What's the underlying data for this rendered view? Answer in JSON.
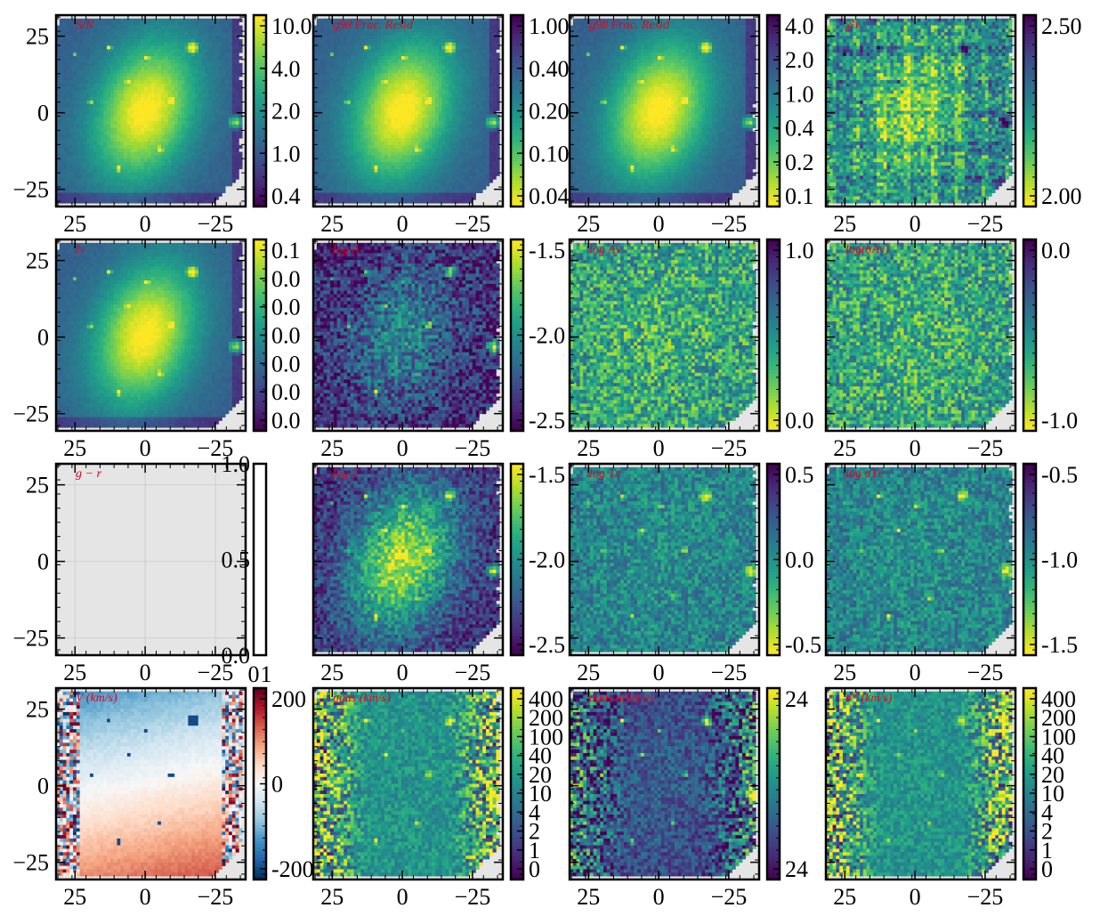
{
  "chart_data": {
    "type": "heatmap",
    "shared_x_ticks": [
      "25",
      "0",
      "−25"
    ],
    "shared_y_ticks": [
      "25",
      "0",
      "−25"
    ],
    "panels": [
      {
        "title": "S/N",
        "colormap": "viridis",
        "pattern": "galaxy",
        "colorbar_ticks": [
          "10.0",
          "4.0",
          "2.0",
          "1.0",
          "0.4"
        ],
        "colorbar_reversed": false
      },
      {
        "title": "g98 Frac. Resid",
        "colormap": "viridis",
        "pattern": "galaxy",
        "colorbar_ticks": [
          "1.00",
          "0.40",
          "0.20",
          "0.10",
          "0.04"
        ],
        "colorbar_reversed": true
      },
      {
        "title": "g98 Frac. Resid",
        "colormap": "viridis",
        "pattern": "galaxy",
        "colorbar_ticks": [
          "4.0",
          "2.0",
          "1.0",
          "0.4",
          "0.2",
          "0.1"
        ],
        "colorbar_reversed": true
      },
      {
        "title": "χ²ν",
        "colormap": "viridis",
        "pattern": "chi",
        "colorbar_ticks": [
          "2.50",
          "2.00"
        ],
        "colorbar_reversed": true
      },
      {
        "title": "Iν",
        "colormap": "viridis",
        "pattern": "galaxy",
        "colorbar_ticks": [
          "0.1",
          "0.0",
          "0.0",
          "0.0",
          "0.0",
          "0.0",
          "0.0"
        ],
        "colorbar_reversed": false
      },
      {
        "title": "log A",
        "colormap": "viridis",
        "pattern": "noisy-galaxy",
        "colorbar_ticks": [
          "-1.5",
          "-2.0",
          "-2.5"
        ],
        "colorbar_reversed": false
      },
      {
        "title": "log Aν",
        "colormap": "viridis",
        "pattern": "noise",
        "colorbar_ticks": [
          "1.0",
          "0.0"
        ],
        "colorbar_reversed": true
      },
      {
        "title": "log(σAν)",
        "colormap": "viridis",
        "pattern": "noise",
        "colorbar_ticks": [
          "0.0",
          "-1.0"
        ],
        "colorbar_reversed": true
      },
      {
        "title": "g − r",
        "colormap": "empty",
        "pattern": "empty",
        "colorbar_ticks": [
          "1.0",
          "0.5",
          "0.0"
        ],
        "colorbar_x_ticks": [
          "0",
          "1"
        ],
        "colorbar_reversed": false
      },
      {
        "title": "log T",
        "colormap": "viridis",
        "pattern": "galaxy-noisy",
        "colorbar_ticks": [
          "-1.5",
          "-2.0",
          "-2.5"
        ],
        "colorbar_reversed": false
      },
      {
        "title": "log Tν",
        "colormap": "viridis",
        "pattern": "noise-dots",
        "colorbar_ticks": [
          "0.5",
          "0.0",
          "-0.5"
        ],
        "colorbar_reversed": true
      },
      {
        "title": "log σTν",
        "colormap": "viridis",
        "pattern": "noise-dots",
        "colorbar_ticks": [
          "-0.5",
          "-1.0",
          "-1.5"
        ],
        "colorbar_reversed": true
      },
      {
        "title": "V (km/s)",
        "colormap": "RdBu",
        "pattern": "velocity",
        "colorbar_ticks": [
          "200",
          "0",
          "-200"
        ],
        "colorbar_reversed": false
      },
      {
        "title": "σgas (km/s)",
        "colormap": "viridis",
        "pattern": "dispersion",
        "colorbar_ticks": [
          "400",
          "200",
          "100",
          "40",
          "20",
          "10",
          "4",
          "2",
          "1",
          "0"
        ],
        "colorbar_reversed": false
      },
      {
        "title": "σgas σ(km/s)",
        "colormap": "viridis",
        "pattern": "dispersion-dark",
        "colorbar_ticks": [
          "24",
          "24"
        ],
        "colorbar_reversed": false
      },
      {
        "title": "σ* (km/s)",
        "colormap": "viridis",
        "pattern": "dispersion",
        "colorbar_ticks": [
          "400",
          "200",
          "100",
          "40",
          "20",
          "10",
          "4",
          "2",
          "1",
          "0"
        ],
        "colorbar_reversed": false
      }
    ]
  }
}
